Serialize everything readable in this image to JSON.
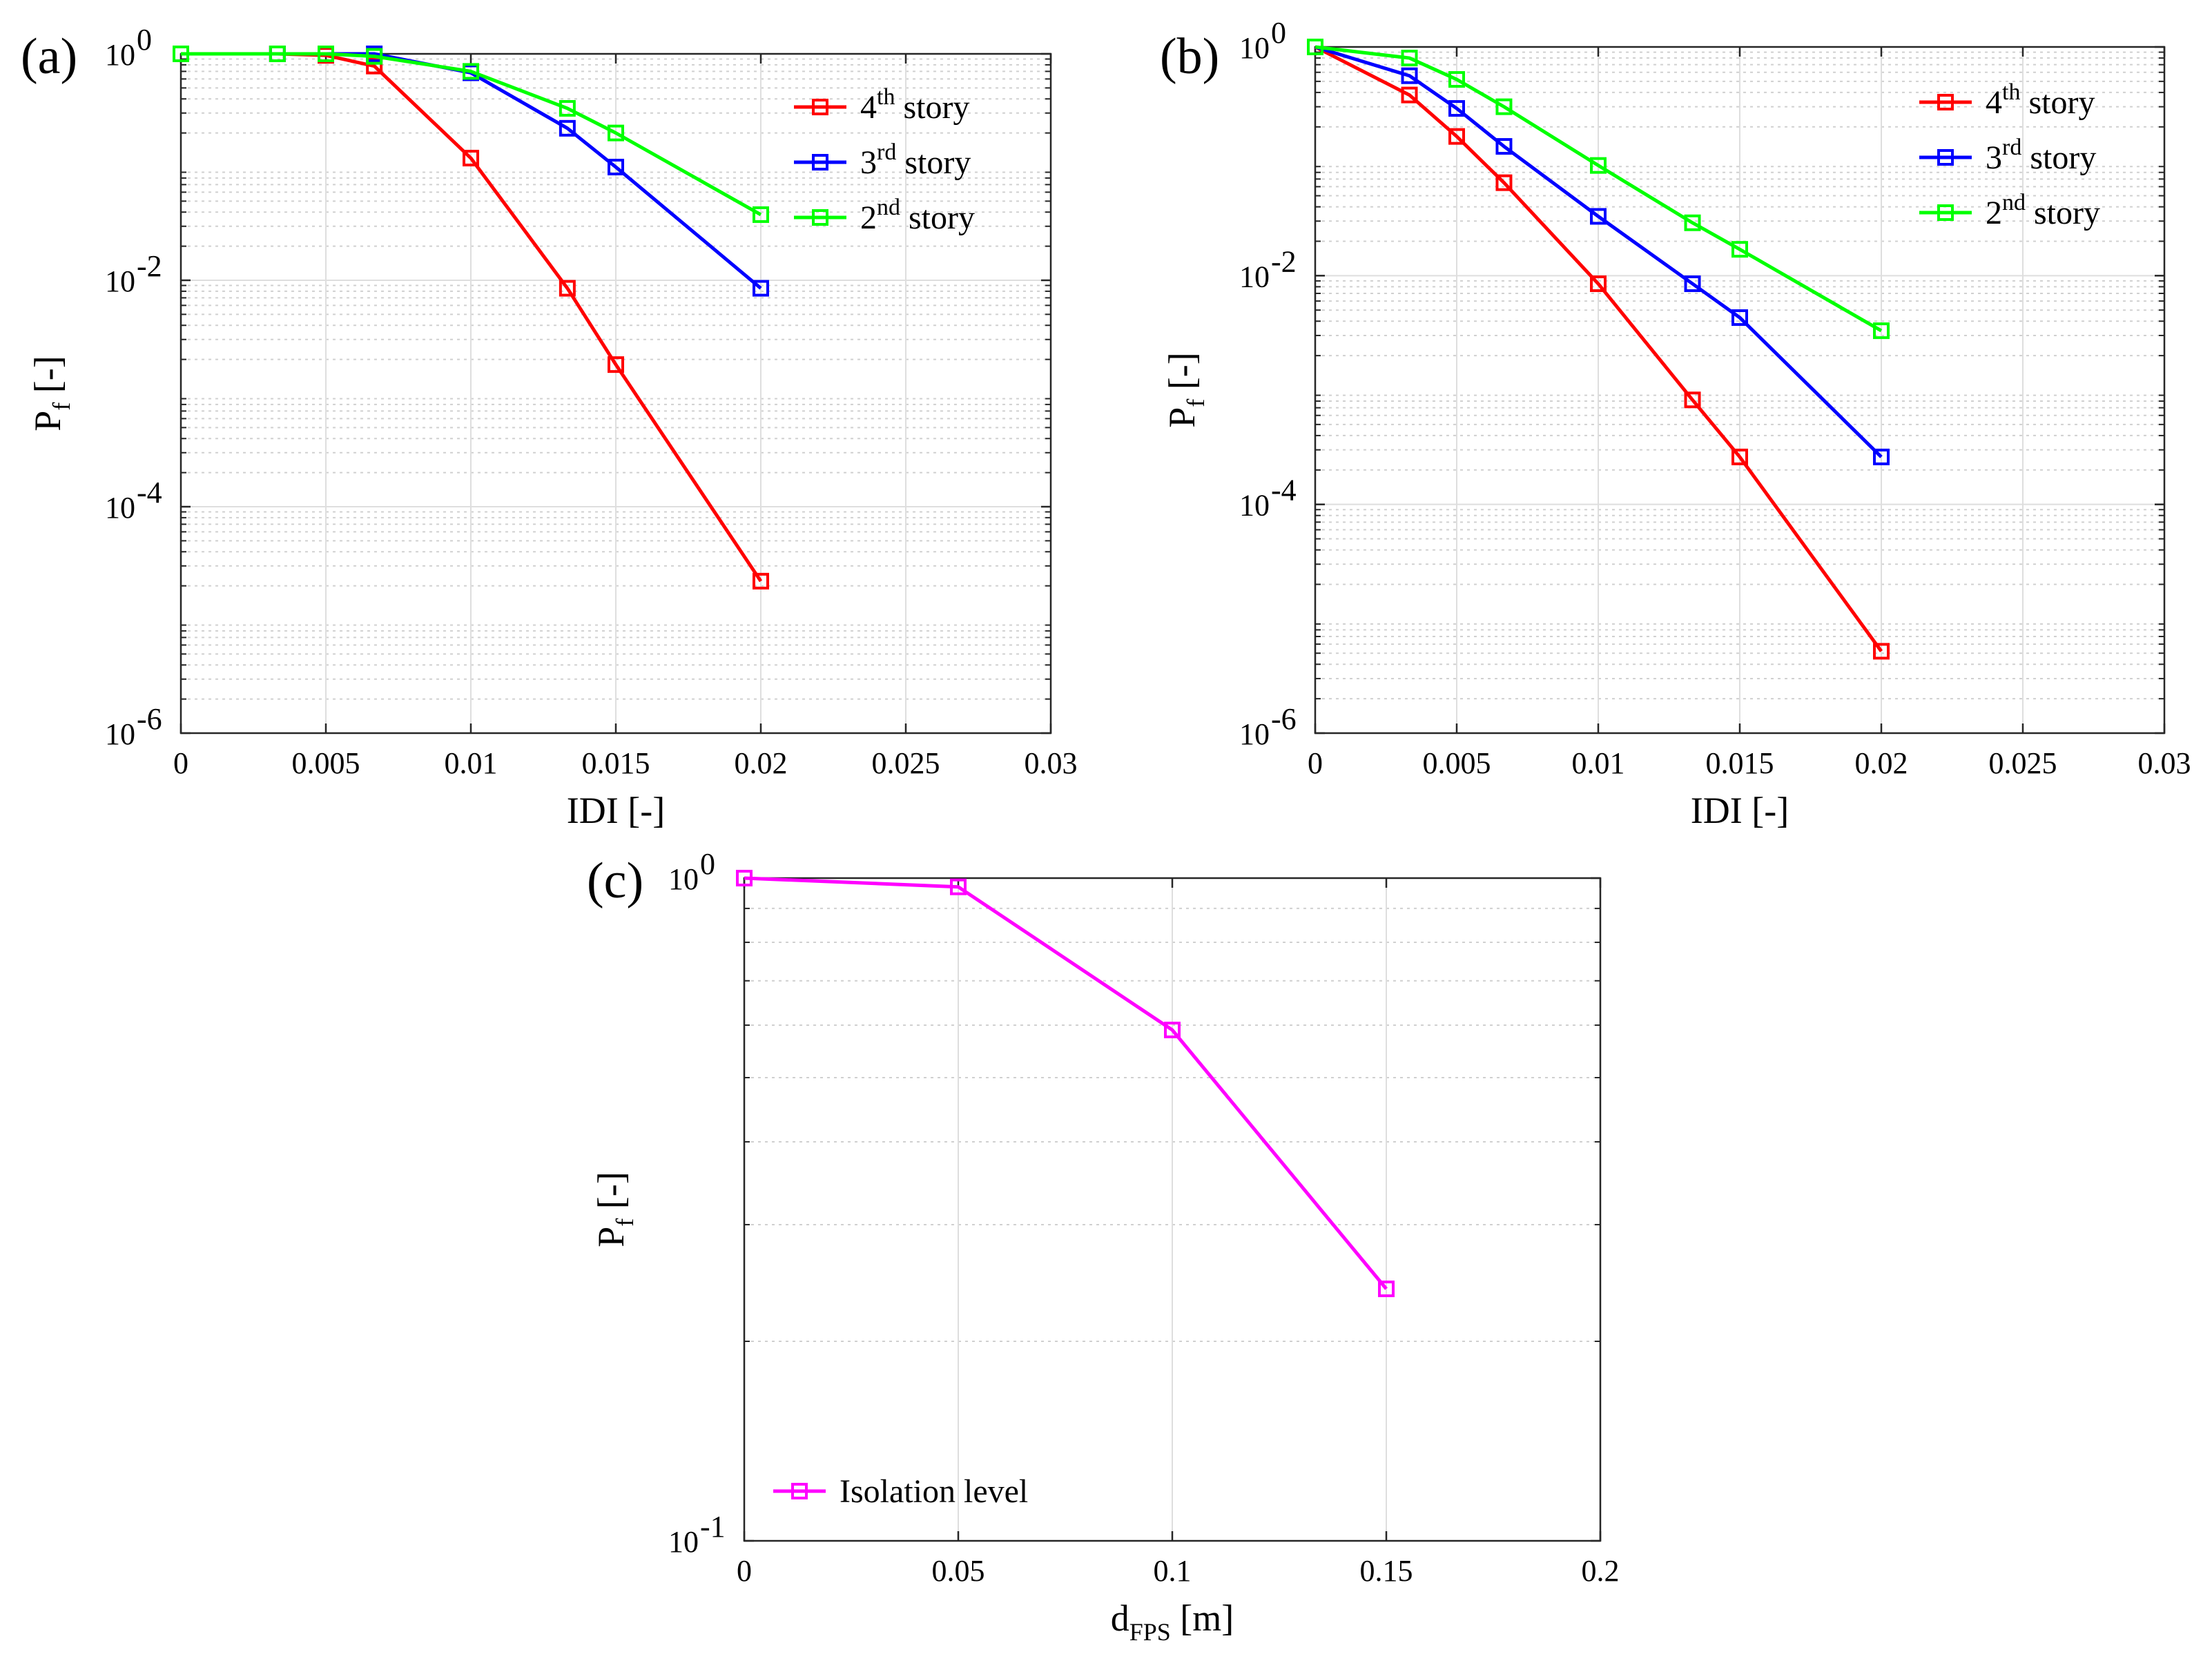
{
  "figure": {
    "panels": [
      {
        "id": "a",
        "label": "(a)"
      },
      {
        "id": "b",
        "label": "(b)"
      },
      {
        "id": "c",
        "label": "(c)"
      }
    ]
  },
  "chart_data": [
    {
      "panel": "(a)",
      "type": "line",
      "yscale": "log",
      "xlabel": "IDI [-]",
      "ylabel": "Pf [-]",
      "ylabel_main": "P",
      "ylabel_sub": "f",
      "ylabel_unit": "[-]",
      "xlim": [
        0,
        0.03
      ],
      "ylim": [
        1e-06,
        1
      ],
      "xticks": [
        0,
        0.005,
        0.01,
        0.015,
        0.02,
        0.025,
        0.03
      ],
      "xtick_labels": [
        "0",
        "0.005",
        "0.01",
        "0.015",
        "0.02",
        "0.025",
        "0.03"
      ],
      "yticks": [
        1e-06,
        0.0001,
        0.01,
        1
      ],
      "ytick_labels": [
        {
          "base": "10",
          "exp": "-6"
        },
        {
          "base": "10",
          "exp": "-4"
        },
        {
          "base": "10",
          "exp": "-2"
        },
        {
          "base": "10",
          "exp": "0"
        }
      ],
      "grid": true,
      "legend_position": "top-right",
      "series": [
        {
          "name": "4th story",
          "label_num": "4",
          "label_sup": "th",
          "label_word": "story",
          "color": "#ff0000",
          "x": [
            0,
            0.00333,
            0.005,
            0.00667,
            0.01,
            0.01333,
            0.015,
            0.02
          ],
          "y": [
            1.0,
            1.0,
            0.97,
            0.78,
            0.12,
            0.0085,
            0.0018,
            2.2e-05
          ]
        },
        {
          "name": "3rd story",
          "label_num": "3",
          "label_sup": "rd",
          "label_word": "story",
          "color": "#0000ff",
          "x": [
            0,
            0.00333,
            0.005,
            0.00667,
            0.01,
            0.01333,
            0.015,
            0.02
          ],
          "y": [
            1.0,
            1.0,
            1.0,
            1.0,
            0.68,
            0.22,
            0.1,
            0.0085
          ]
        },
        {
          "name": "2nd story",
          "label_num": "2",
          "label_sup": "nd",
          "label_word": "story",
          "color": "#00ff00",
          "x": [
            0,
            0.00333,
            0.005,
            0.00667,
            0.01,
            0.01333,
            0.015,
            0.02
          ],
          "y": [
            1.0,
            1.0,
            1.0,
            0.95,
            0.7,
            0.33,
            0.2,
            0.038
          ]
        }
      ]
    },
    {
      "panel": "(b)",
      "type": "line",
      "yscale": "log",
      "xlabel": "IDI [-]",
      "ylabel": "Pf [-]",
      "ylabel_main": "P",
      "ylabel_sub": "f",
      "ylabel_unit": "[-]",
      "xlim": [
        0,
        0.03
      ],
      "ylim": [
        1e-06,
        1
      ],
      "xticks": [
        0,
        0.005,
        0.01,
        0.015,
        0.02,
        0.025,
        0.03
      ],
      "xtick_labels": [
        "0",
        "0.005",
        "0.01",
        "0.015",
        "0.02",
        "0.025",
        "0.03"
      ],
      "yticks": [
        1e-06,
        0.0001,
        0.01,
        1
      ],
      "ytick_labels": [
        {
          "base": "10",
          "exp": "-6"
        },
        {
          "base": "10",
          "exp": "-4"
        },
        {
          "base": "10",
          "exp": "-2"
        },
        {
          "base": "10",
          "exp": "0"
        }
      ],
      "grid": true,
      "legend_position": "top-right",
      "series": [
        {
          "name": "4th story",
          "label_num": "4",
          "label_sup": "th",
          "label_word": "story",
          "color": "#ff0000",
          "x": [
            0,
            0.00333,
            0.005,
            0.00667,
            0.01,
            0.01333,
            0.015,
            0.02
          ],
          "y": [
            1.0,
            0.38,
            0.165,
            0.065,
            0.0085,
            0.00082,
            0.00026,
            5.2e-06
          ]
        },
        {
          "name": "3rd story",
          "label_num": "3",
          "label_sup": "rd",
          "label_word": "story",
          "color": "#0000ff",
          "x": [
            0,
            0.00333,
            0.005,
            0.00667,
            0.01,
            0.01333,
            0.015,
            0.02
          ],
          "y": [
            1.0,
            0.56,
            0.29,
            0.135,
            0.033,
            0.0085,
            0.0043,
            0.00026
          ]
        },
        {
          "name": "2nd story",
          "label_num": "2",
          "label_sup": "nd",
          "label_word": "story",
          "color": "#00ff00",
          "x": [
            0,
            0.00333,
            0.005,
            0.00667,
            0.01,
            0.01333,
            0.015,
            0.02
          ],
          "y": [
            1.0,
            0.8,
            0.52,
            0.3,
            0.092,
            0.029,
            0.017,
            0.0033
          ]
        }
      ]
    },
    {
      "panel": "(c)",
      "type": "line",
      "yscale": "log",
      "xlabel": "dFPS [m]",
      "xlabel_main": "d",
      "xlabel_sub": "FPS",
      "xlabel_unit": "[m]",
      "ylabel": "Pf [-]",
      "ylabel_main": "P",
      "ylabel_sub": "f",
      "ylabel_unit": "[-]",
      "xlim": [
        0,
        0.2
      ],
      "ylim": [
        0.1,
        1
      ],
      "xticks": [
        0,
        0.05,
        0.1,
        0.15,
        0.2
      ],
      "xtick_labels": [
        "0",
        "0.05",
        "0.1",
        "0.15",
        "0.2"
      ],
      "yticks": [
        0.1,
        1
      ],
      "ytick_labels": [
        {
          "base": "10",
          "exp": "-1"
        },
        {
          "base": "10",
          "exp": "0"
        }
      ],
      "grid": true,
      "legend_position": "bottom-left",
      "series": [
        {
          "name": "Isolation level",
          "label_word": "Isolation level",
          "color": "#ff00ff",
          "x": [
            0,
            0.05,
            0.1,
            0.15
          ],
          "y": [
            1.0,
            0.97,
            0.59,
            0.24
          ]
        }
      ]
    }
  ]
}
